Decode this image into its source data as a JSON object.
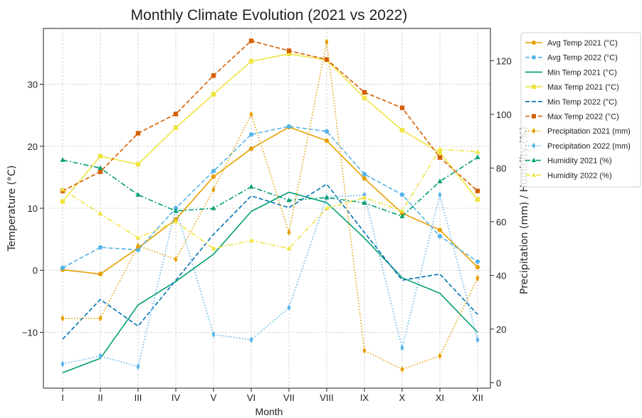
{
  "chart_data": {
    "type": "line",
    "title": "Monthly Climate Evolution (2021 vs 2022)",
    "xlabel": "Month",
    "ylabel_left": "Temperature (°C)",
    "ylabel_right": "Precipitation (mm) / Humidity (%)",
    "categories": [
      "I",
      "II",
      "III",
      "IV",
      "V",
      "VI",
      "VII",
      "VIII",
      "IX",
      "X",
      "XI",
      "XII"
    ],
    "ylim_left": [
      -19,
      39
    ],
    "ylim_right": [
      -2,
      132
    ],
    "yticks_left": [
      -10,
      0,
      10,
      20,
      30
    ],
    "yticks_right": [
      0,
      20,
      40,
      60,
      80,
      100,
      120
    ],
    "grid": true,
    "legend_position": "top-right",
    "series": [
      {
        "name": "Avg Temp 2021 (°C)",
        "axis": "left",
        "color": "#e69f00",
        "dash": "solid",
        "marker": "circle",
        "values": [
          0.1,
          -0.6,
          3.6,
          8.2,
          15.1,
          19.6,
          23.1,
          20.9,
          14.8,
          9.2,
          6.5,
          0.5
        ]
      },
      {
        "name": "Avg Temp 2022 (°C)",
        "axis": "left",
        "color": "#56b4e9",
        "dash": "dashed",
        "marker": "circle",
        "values": [
          0.4,
          3.7,
          3.3,
          10.0,
          16.0,
          21.9,
          23.2,
          22.4,
          15.5,
          12.2,
          5.5,
          1.4
        ]
      },
      {
        "name": "Min Temp 2021 (°C)",
        "axis": "left",
        "color": "#009e73",
        "dash": "solid",
        "marker": "none",
        "values": [
          -16.5,
          -14.2,
          -5.6,
          -1.8,
          2.6,
          9.5,
          12.6,
          10.9,
          5.2,
          -1.2,
          -3.7,
          -10.0
        ]
      },
      {
        "name": "Max Temp 2021 (°C)",
        "axis": "left",
        "color": "#f0e442",
        "dash": "solid",
        "marker": "square",
        "values": [
          11.1,
          18.4,
          17.1,
          23.0,
          28.4,
          33.7,
          34.9,
          33.9,
          27.8,
          22.6,
          19.0,
          11.4
        ]
      },
      {
        "name": "Min Temp 2022 (°C)",
        "axis": "left",
        "color": "#0072b2",
        "dash": "dashed",
        "marker": "none",
        "values": [
          -11.1,
          -4.7,
          -9.0,
          -1.6,
          5.8,
          12.0,
          10.1,
          13.9,
          6.1,
          -1.6,
          -0.6,
          -7.1
        ]
      },
      {
        "name": "Max Temp 2022 (°C)",
        "axis": "left",
        "color": "#d55e00",
        "dash": "dashed",
        "marker": "square",
        "values": [
          12.8,
          15.9,
          22.1,
          25.2,
          31.4,
          37.0,
          35.4,
          34.0,
          28.7,
          26.2,
          18.2,
          12.8
        ]
      },
      {
        "name": "Precipitation 2021 (mm)",
        "axis": "right",
        "color": "#e69f00",
        "dash": "dotted",
        "marker": "diamond",
        "values": [
          24,
          24,
          51,
          46,
          72,
          100,
          56,
          127,
          12,
          5,
          10,
          39
        ]
      },
      {
        "name": "Precipitation 2022 (mm)",
        "axis": "right",
        "color": "#56b4e9",
        "dash": "dotted",
        "marker": "diamond",
        "values": [
          7,
          10,
          6,
          65,
          18,
          16,
          28,
          69,
          70,
          13,
          70,
          16
        ]
      },
      {
        "name": "Humidity 2021 (%)",
        "axis": "right",
        "color": "#009e73",
        "dash": "dashdot",
        "marker": "triangle",
        "values": [
          83,
          80,
          70,
          64,
          65,
          73,
          68,
          69,
          67,
          62,
          75,
          84
        ]
      },
      {
        "name": "Humidity 2022 (%)",
        "axis": "right",
        "color": "#f0e442",
        "dash": "dashdot",
        "marker": "triangle",
        "values": [
          72,
          63,
          54,
          60,
          50,
          53,
          50,
          65,
          69,
          64,
          87,
          86
        ]
      }
    ]
  }
}
